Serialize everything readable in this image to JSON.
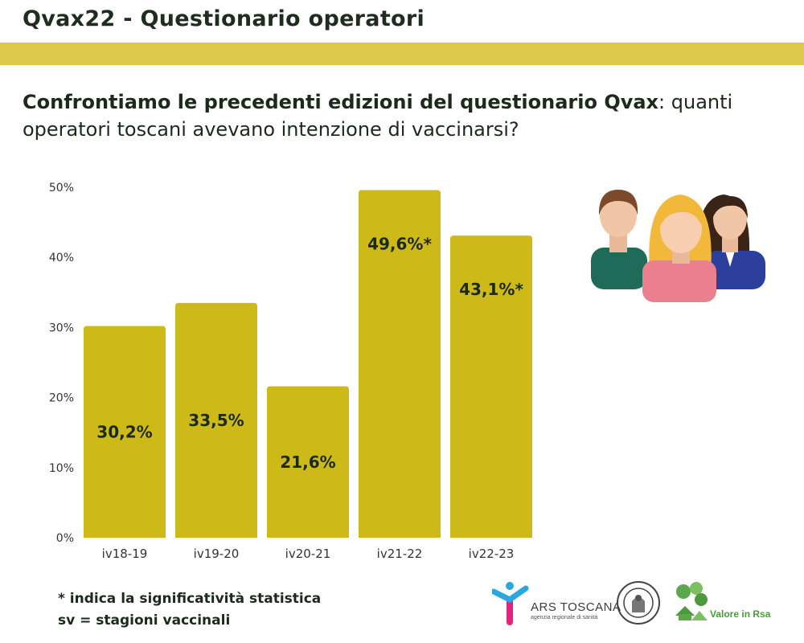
{
  "header": {
    "title": "Qvax22 - Questionario operatori"
  },
  "question": {
    "bold_part": "Confrontiamo le precedenti edizioni del questionario Qvax",
    "rest_part": ": quanti operatori toscani avevano intenzione di vaccinarsi?"
  },
  "chart_data": {
    "type": "bar",
    "categories": [
      "iv18-19",
      "iv19-20",
      "iv20-21",
      "iv21-22",
      "iv22-23"
    ],
    "values": [
      30.2,
      33.5,
      21.6,
      49.6,
      43.1
    ],
    "value_labels": [
      "30,2%",
      "33,5%",
      "21,6%",
      "49,6%*",
      "43,1%*"
    ],
    "yticks": [
      "0%",
      "10%",
      "20%",
      "30%",
      "40%",
      "50%"
    ],
    "ylim": [
      0,
      50
    ],
    "title": "",
    "xlabel": "",
    "ylabel": "",
    "bar_color": "#cdb918",
    "grid": false
  },
  "footnotes": [
    "* indica la significatività statistica",
    "sv = stagioni vaccinali"
  ],
  "logos": {
    "ars_name": "ARS TOSCANA",
    "ars_subtitle": "agenzia regionale di sanità",
    "rsa_name": "Valore in Rsa"
  },
  "colors": {
    "header_band": "#dcc84a",
    "text": "#1c2a1c"
  }
}
